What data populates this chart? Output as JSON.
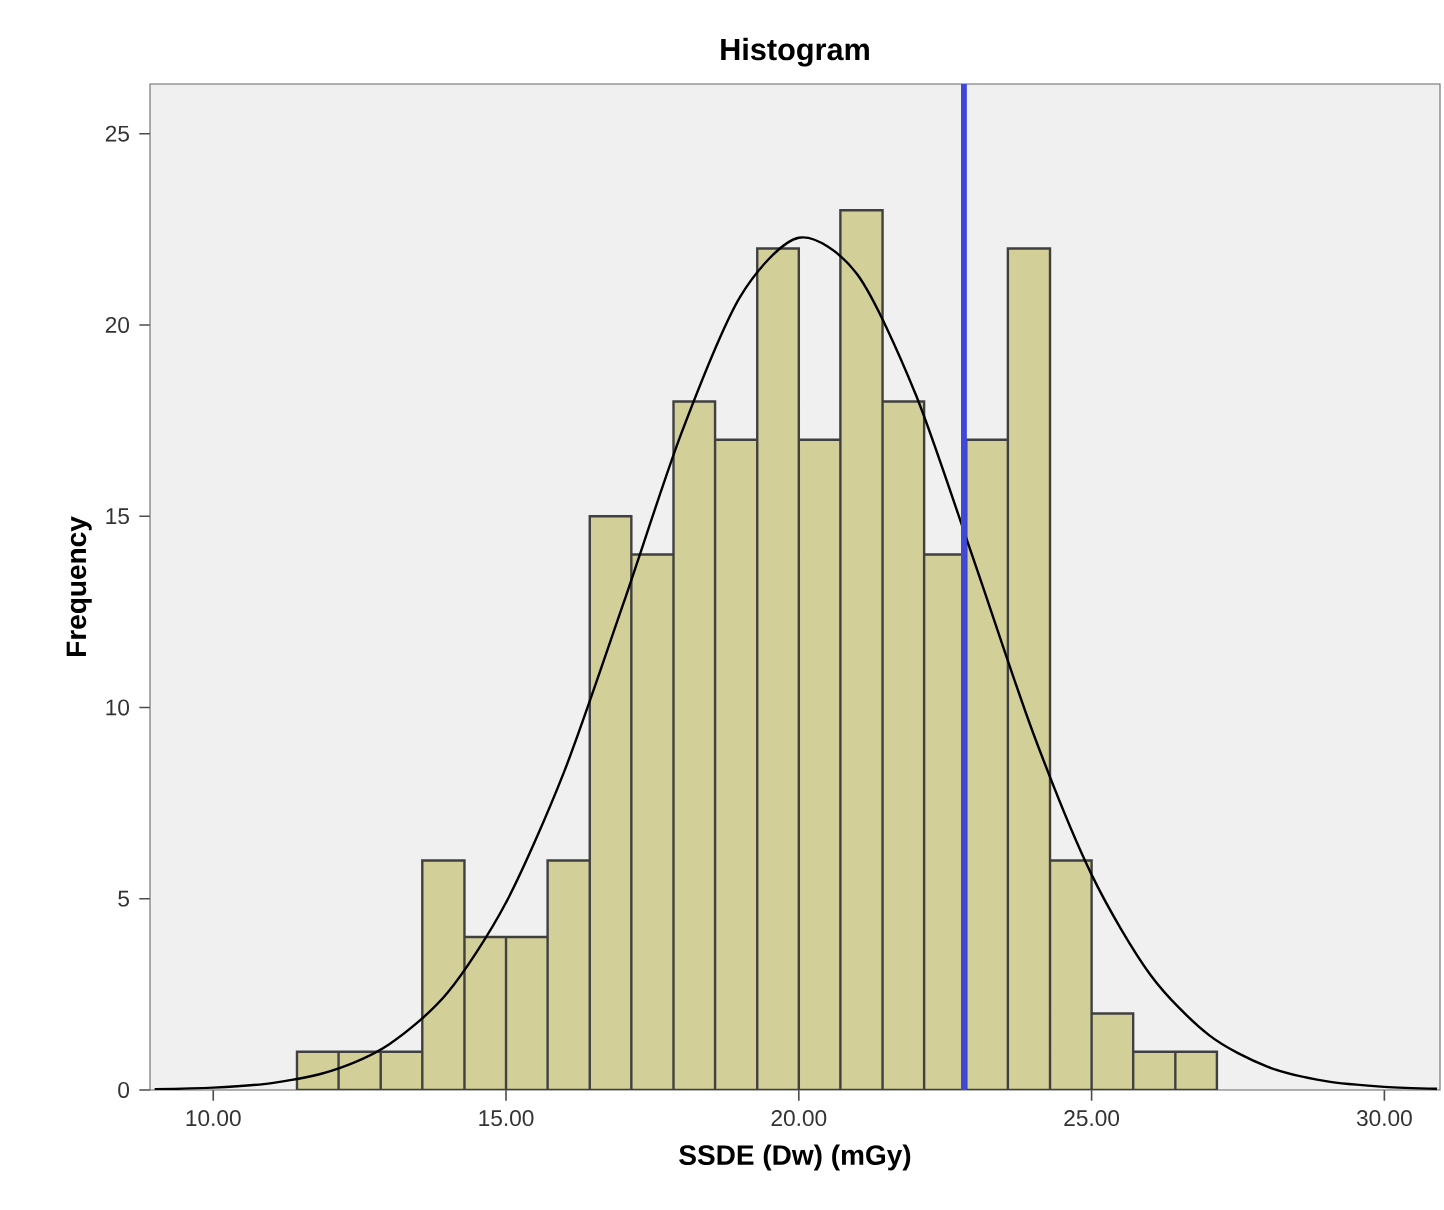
{
  "chart_data": {
    "type": "histogram",
    "title": "Histogram",
    "xlabel": "SSDE (Dw) (mGy)",
    "ylabel": "Frequency",
    "series": [
      {
        "color": "#d3cf98",
        "bins": [
          11.43,
          12.14,
          12.86,
          13.57,
          14.29,
          15.0,
          15.71,
          16.43,
          17.14,
          17.86,
          18.57,
          19.29,
          20.0,
          20.71,
          21.43,
          22.14,
          22.86,
          23.57,
          24.29,
          25.0,
          25.71,
          26.43,
          27.14
        ],
        "values": [
          1,
          1,
          1,
          6,
          4,
          4,
          6,
          15,
          14,
          18,
          17,
          22,
          17,
          23,
          18,
          14,
          17,
          22,
          6,
          2,
          1,
          1
        ]
      },
      {
        "type": "line",
        "color": "#000000",
        "x": [
          9,
          10,
          11,
          12,
          13,
          14,
          15,
          16,
          17,
          18,
          19,
          20,
          21,
          22,
          23,
          24,
          25,
          26,
          27,
          28,
          29,
          30,
          30.9
        ],
        "values": [
          0.02,
          0.06,
          0.18,
          0.49,
          1.19,
          2.54,
          4.9,
          8.35,
          12.7,
          17.19,
          20.74,
          22.28,
          21.32,
          18.17,
          13.8,
          9.34,
          5.63,
          3.02,
          1.44,
          0.61,
          0.23,
          0.08,
          0.03
        ]
      }
    ],
    "ref_lines": [
      {
        "axis": "x",
        "value": 22.82,
        "color": "#3f48d8"
      }
    ],
    "xlim": [
      8.92,
      30.95
    ],
    "ylim": [
      0,
      26.3
    ],
    "xticks": [
      {
        "value": 10,
        "label": "10.00"
      },
      {
        "value": 15,
        "label": "15.00"
      },
      {
        "value": 20,
        "label": "20.00"
      },
      {
        "value": 25,
        "label": "25.00"
      },
      {
        "value": 30,
        "label": "30.00"
      }
    ],
    "yticks": [
      0,
      5,
      10,
      15,
      20,
      25
    ],
    "grid": false
  }
}
